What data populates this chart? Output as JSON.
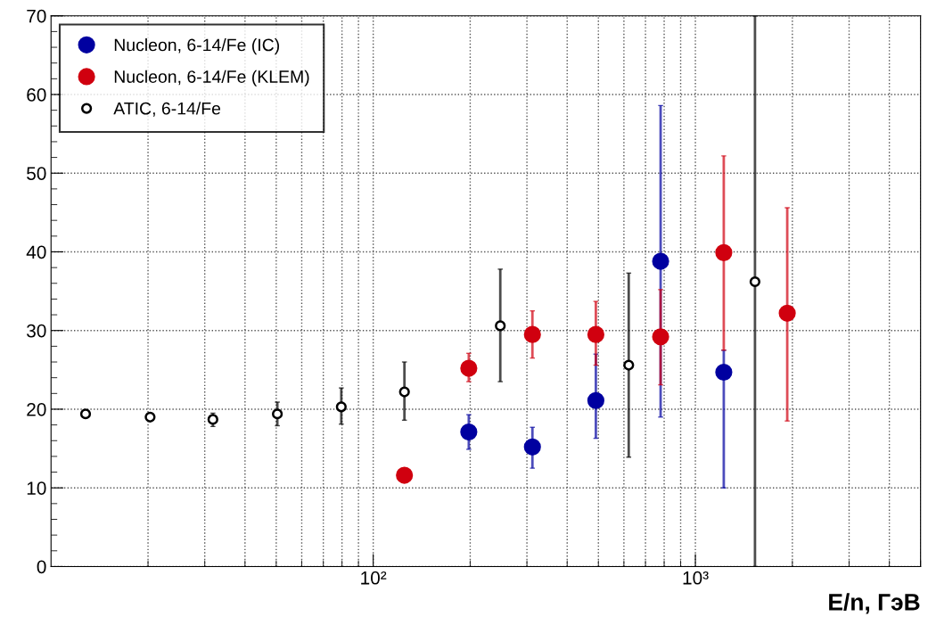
{
  "chart_data": {
    "type": "scatter",
    "xlabel": "E/n, ГэВ",
    "log": "x",
    "grid": true,
    "legend": "top left",
    "marker": "circle",
    "xlim": [
      10,
      5000
    ],
    "xticks": [
      {
        "value": 100,
        "label": "10²"
      },
      {
        "value": 1000,
        "label": "10³"
      }
    ],
    "ylim": [
      0,
      70
    ],
    "yticks": [
      0,
      10,
      20,
      30,
      40,
      50,
      60,
      70
    ],
    "series": [
      {
        "name": "Nucleon, 6-14/Fe (IC)",
        "color": "#0000a0",
        "x": [
          198,
          312,
          491,
          780,
          1225
        ],
        "values": [
          17.1,
          15.2,
          21.1,
          38.8,
          24.7
        ],
        "errors": [
          [
            14.9,
            19.3
          ],
          [
            12.5,
            17.7
          ],
          [
            16.3,
            27.0
          ],
          [
            19.0,
            58.6
          ],
          [
            10.0,
            27.5
          ]
        ]
      },
      {
        "name": "Nucleon, 6-14/Fe (KLEM)",
        "color": "#d0000f",
        "x": [
          125,
          198,
          312,
          491,
          780,
          1225,
          1928
        ],
        "values": [
          11.6,
          25.2,
          29.5,
          29.5,
          29.2,
          39.9,
          32.2
        ],
        "errors": [
          null,
          [
            23.5,
            27.1
          ],
          [
            26.5,
            32.5
          ],
          [
            25.6,
            33.7
          ],
          [
            23.1,
            35.2
          ],
          [
            27.5,
            52.2
          ],
          [
            18.5,
            45.6
          ]
        ]
      },
      {
        "name": "ATIC, 6-14/Fe",
        "color": "#000000",
        "marker": "open circle",
        "x": [
          12.8,
          20.3,
          31.8,
          50.4,
          79.6,
          125,
          248,
          621,
          1531
        ],
        "values": [
          19.4,
          19.0,
          18.7,
          19.4,
          20.3,
          22.2,
          30.6,
          25.6,
          36.2
        ],
        "errors": [
          null,
          null,
          [
            17.8,
            19.5
          ],
          [
            17.9,
            20.9
          ],
          [
            18.1,
            22.7
          ],
          [
            18.6,
            26.0
          ],
          [
            23.5,
            37.8
          ],
          [
            13.9,
            37.3
          ],
          [
            0,
            70
          ]
        ]
      }
    ]
  }
}
